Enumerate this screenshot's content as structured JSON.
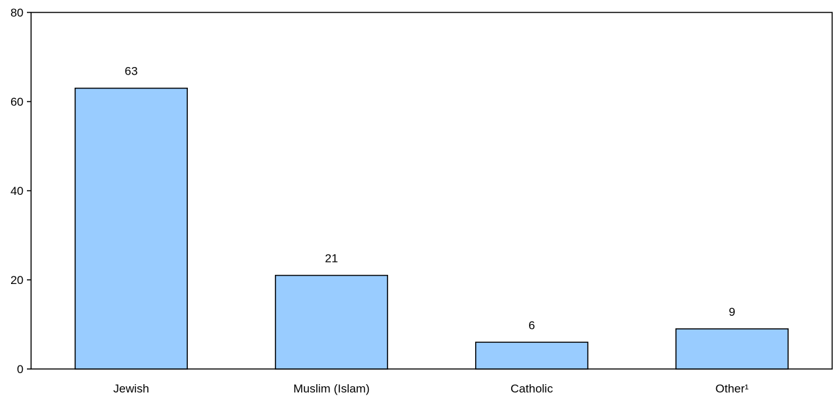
{
  "chart_data": {
    "type": "bar",
    "categories": [
      "Jewish",
      "Muslim (Islam)",
      "Catholic",
      "Other¹"
    ],
    "values": [
      63,
      21,
      6,
      9
    ],
    "data_labels": [
      "63",
      "21",
      "6",
      "9"
    ],
    "ylim": [
      0,
      80
    ],
    "yticks": [
      0,
      20,
      40,
      60,
      80
    ],
    "ytick_labels": [
      "0",
      "20",
      "40",
      "60",
      "80"
    ],
    "grid": false,
    "legend": "none",
    "colors": {
      "bar_fill": "#99CCFF",
      "bar_stroke": "#000000",
      "axis": "#000000"
    }
  }
}
